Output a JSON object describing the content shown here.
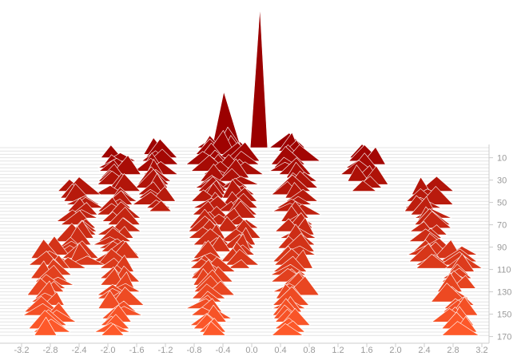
{
  "chart_data": {
    "type": "area",
    "subtype": "ridgeline",
    "title": "",
    "xlabel": "",
    "ylabel": "",
    "xlim": [
      -3.3,
      3.3
    ],
    "ylim": [
      1,
      171
    ],
    "x_ticks": [
      "-3.2",
      "-2.8",
      "-2.4",
      "-2.0",
      "-1.6",
      "-1.2",
      "-0.8",
      "-0.4",
      "0.0",
      "0.4",
      "0.8",
      "1.2",
      "1.6",
      "2.0",
      "2.4",
      "2.8",
      "3.2"
    ],
    "y_ticks": [
      "10",
      "30",
      "50",
      "70",
      "90",
      "110",
      "130",
      "150",
      "170"
    ],
    "y_axis_position": "right",
    "grid": true,
    "series_count": 170,
    "color_gradient": {
      "start": "#9b0000",
      "end": "#ff5a2a"
    },
    "central_peaks": [
      {
        "x": 0.1,
        "peak": 1
      },
      {
        "x": -0.35,
        "peak": 3
      }
    ],
    "clusters": [
      {
        "x": -0.55,
        "from": 1,
        "to": 170
      },
      {
        "x": -0.2,
        "from": 1,
        "to": 110
      },
      {
        "x": 0.6,
        "from": 1,
        "to": 170
      },
      {
        "x": -1.85,
        "from": 10,
        "to": 170
      },
      {
        "x": -1.3,
        "from": 5,
        "to": 60
      },
      {
        "x": 1.6,
        "from": 10,
        "to": 40
      },
      {
        "x": -2.4,
        "from": 40,
        "to": 110
      },
      {
        "x": 2.45,
        "from": 40,
        "to": 110
      },
      {
        "x": -2.8,
        "from": 95,
        "to": 170
      },
      {
        "x": 2.85,
        "from": 95,
        "to": 170
      }
    ]
  }
}
